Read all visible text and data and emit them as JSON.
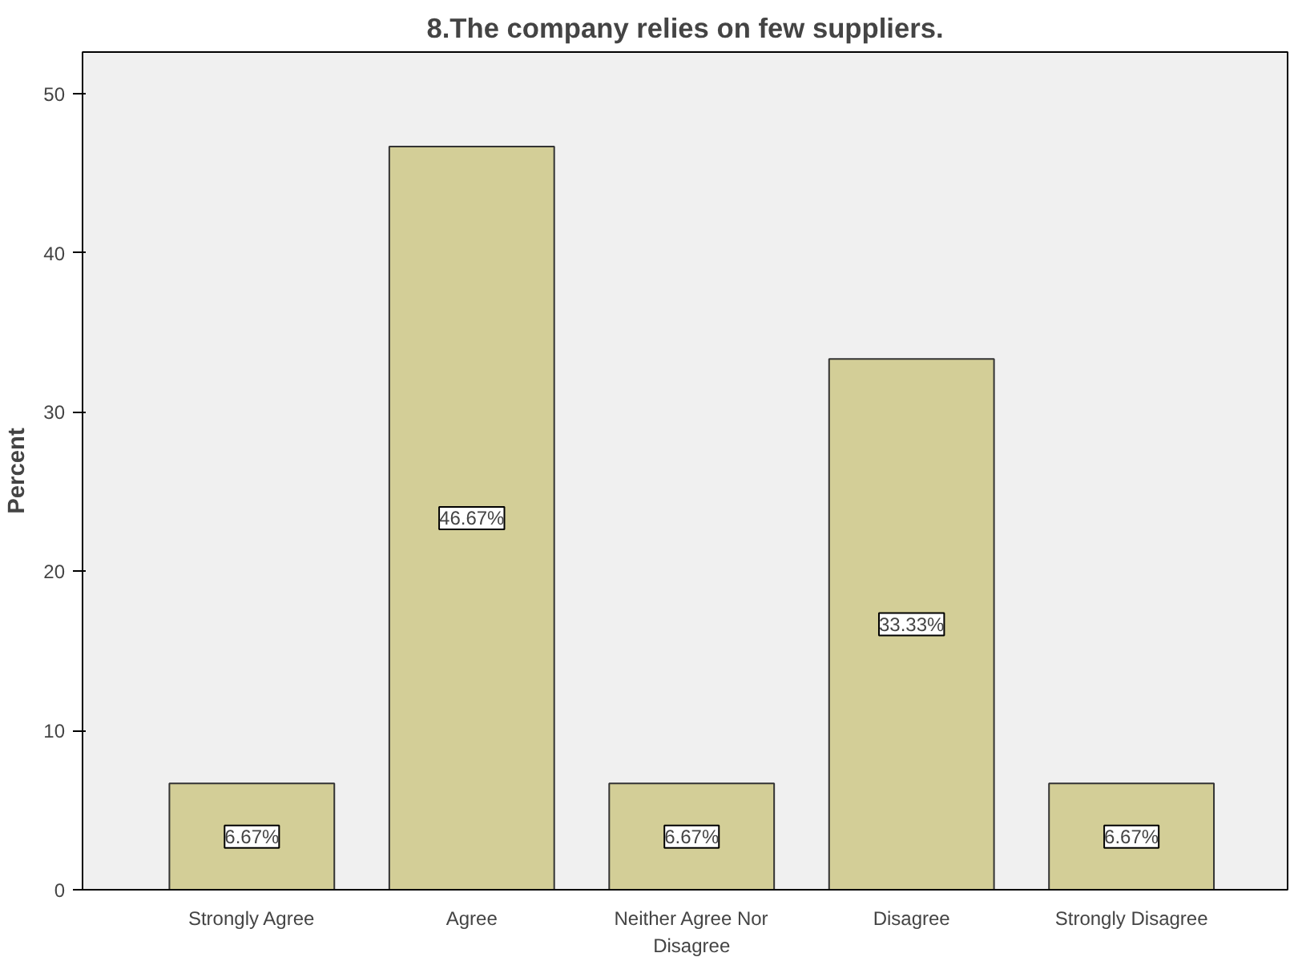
{
  "chart_data": {
    "type": "bar",
    "title": "8.The company relies on few suppliers.",
    "ylabel": "Percent",
    "categories": [
      "Strongly Agree",
      "Agree",
      "Neither Agree Nor Disagree",
      "Disagree",
      "Strongly Disagree"
    ],
    "values": [
      6.67,
      46.67,
      6.67,
      33.33,
      6.67
    ],
    "value_labels": [
      "6.67%",
      "46.67%",
      "6.67%",
      "33.33%",
      "6.67%"
    ],
    "color": "#d3ce97",
    "ylim": [
      0,
      52.6
    ],
    "yticks": [
      0,
      10,
      20,
      30,
      40,
      50
    ],
    "grid": false
  }
}
